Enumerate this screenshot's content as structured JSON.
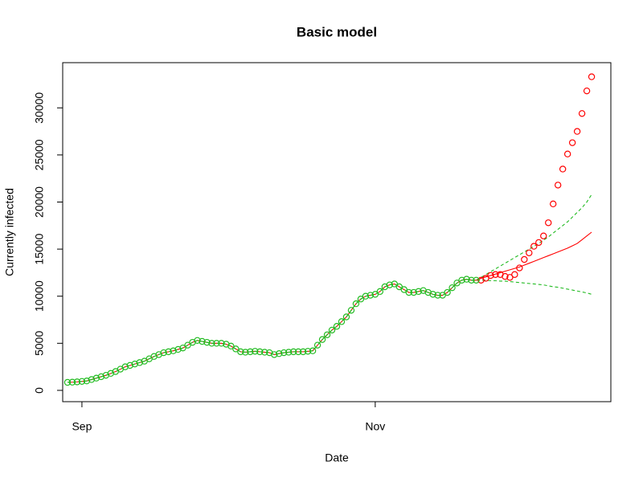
{
  "chart_data": {
    "type": "line",
    "title": "Basic model",
    "x_label": "Date",
    "y_label": "Currently infected",
    "x": [
      0,
      1,
      2,
      3,
      4,
      5,
      6,
      7,
      8,
      9,
      10,
      11,
      12,
      13,
      14,
      15,
      16,
      17,
      18,
      19,
      20,
      21,
      22,
      23,
      24,
      25,
      26,
      27,
      28,
      29,
      30,
      31,
      32,
      33,
      34,
      35,
      36,
      37,
      38,
      39,
      40,
      41,
      42,
      43,
      44,
      45,
      46,
      47,
      48,
      49,
      50,
      51,
      52,
      53,
      54,
      55,
      56,
      57,
      58,
      59,
      60,
      61,
      62,
      63,
      64,
      65,
      66,
      67,
      68,
      69,
      70,
      71,
      72,
      73,
      74,
      75,
      76,
      77,
      78,
      79,
      80,
      81,
      82,
      83,
      84,
      85,
      86,
      87,
      88,
      89,
      90,
      91,
      92,
      93,
      94,
      95,
      96,
      97,
      98,
      99,
      100,
      101,
      102,
      103,
      104,
      105,
      106,
      107,
      108,
      109
    ],
    "xlim": [
      -1,
      113
    ],
    "xticks": [
      {
        "value": 3,
        "label": "Sep"
      },
      {
        "value": 64,
        "label": "Nov"
      }
    ],
    "ylim": [
      -1200,
      34800
    ],
    "yticks": [
      0,
      5000,
      10000,
      15000,
      20000,
      25000,
      30000
    ],
    "series": [
      {
        "color": "#ff0000",
        "style": "solid",
        "values": [
          850,
          870,
          900,
          950,
          1000,
          1150,
          1300,
          1450,
          1600,
          1800,
          2000,
          2250,
          2500,
          2650,
          2800,
          2950,
          3100,
          3350,
          3600,
          3800,
          4000,
          4100,
          4200,
          4350,
          4500,
          4800,
          5100,
          5300,
          5200,
          5100,
          5000,
          5000,
          5000,
          4900,
          4700,
          4400,
          4100,
          4050,
          4100,
          4150,
          4100,
          4050,
          4000,
          3800,
          3900,
          4000,
          4050,
          4100,
          4100,
          4100,
          4150,
          4200,
          4800,
          5400,
          5900,
          6400,
          6800,
          7300,
          7800,
          8500,
          9200,
          9700,
          10000,
          10100,
          10200,
          10500,
          11000,
          11200,
          11300,
          11000,
          10700,
          10400,
          10400,
          10500,
          10600,
          10400,
          10200,
          10100,
          10100,
          10400,
          10900,
          11400,
          11700,
          11800,
          11700,
          11700,
          11900,
          12050,
          12200,
          12350,
          12500,
          12650,
          12800,
          12950,
          13100,
          13300,
          13500,
          13700,
          13900,
          14100,
          14300,
          14500,
          14700,
          14900,
          15100,
          15350,
          15600,
          16000,
          16400,
          16800
        ]
      },
      {
        "color": "#22bb22",
        "style": "dashed",
        "values": [
          850,
          870,
          900,
          950,
          1000,
          1150,
          1300,
          1450,
          1600,
          1800,
          2000,
          2250,
          2500,
          2650,
          2800,
          2950,
          3100,
          3350,
          3600,
          3800,
          4000,
          4100,
          4200,
          4350,
          4500,
          4800,
          5100,
          5300,
          5200,
          5100,
          5000,
          5000,
          5000,
          4900,
          4700,
          4400,
          4100,
          4050,
          4100,
          4150,
          4100,
          4050,
          4000,
          3800,
          3900,
          4000,
          4050,
          4100,
          4100,
          4100,
          4150,
          4200,
          4800,
          5400,
          5900,
          6400,
          6800,
          7300,
          7800,
          8500,
          9200,
          9700,
          10000,
          10100,
          10200,
          10500,
          11000,
          11200,
          11300,
          11000,
          10700,
          10400,
          10400,
          10500,
          10600,
          10400,
          10200,
          10100,
          10100,
          10400,
          10900,
          11400,
          11700,
          11800,
          11700,
          11700,
          12000,
          12300,
          12600,
          12900,
          13200,
          13500,
          13800,
          14100,
          14400,
          14700,
          15000,
          15300,
          15600,
          15950,
          16300,
          16700,
          17100,
          17500,
          17900,
          18400,
          18900,
          19400,
          20000,
          20800
        ]
      },
      {
        "color": "#22bb22",
        "style": "dashed",
        "values": [
          850,
          870,
          900,
          950,
          1000,
          1150,
          1300,
          1450,
          1600,
          1800,
          2000,
          2250,
          2500,
          2650,
          2800,
          2950,
          3100,
          3350,
          3600,
          3800,
          4000,
          4100,
          4200,
          4350,
          4500,
          4800,
          5100,
          5300,
          5200,
          5100,
          5000,
          5000,
          5000,
          4900,
          4700,
          4400,
          4100,
          4050,
          4100,
          4150,
          4100,
          4050,
          4000,
          3800,
          3900,
          4000,
          4050,
          4100,
          4100,
          4100,
          4150,
          4200,
          4800,
          5400,
          5900,
          6400,
          6800,
          7300,
          7800,
          8500,
          9200,
          9700,
          10000,
          10100,
          10200,
          10500,
          11000,
          11200,
          11300,
          11000,
          10700,
          10400,
          10400,
          10500,
          10600,
          10400,
          10200,
          10100,
          10100,
          10400,
          10900,
          11400,
          11700,
          11800,
          11700,
          11700,
          11700,
          11700,
          11650,
          11650,
          11600,
          11600,
          11550,
          11500,
          11450,
          11400,
          11350,
          11300,
          11250,
          11200,
          11100,
          11000,
          10950,
          10850,
          10750,
          10650,
          10550,
          10450,
          10350,
          10200
        ]
      },
      {
        "color": "#ff0000",
        "style": "circles",
        "values": [
          null,
          null,
          null,
          null,
          null,
          null,
          null,
          null,
          null,
          null,
          null,
          null,
          null,
          null,
          null,
          null,
          null,
          null,
          null,
          null,
          null,
          null,
          null,
          null,
          null,
          null,
          null,
          null,
          null,
          null,
          null,
          null,
          null,
          null,
          null,
          null,
          null,
          null,
          null,
          null,
          null,
          null,
          null,
          null,
          null,
          null,
          null,
          null,
          null,
          null,
          null,
          null,
          null,
          null,
          null,
          null,
          null,
          null,
          null,
          null,
          null,
          null,
          null,
          null,
          null,
          null,
          null,
          null,
          null,
          null,
          null,
          null,
          null,
          null,
          null,
          null,
          null,
          null,
          null,
          null,
          null,
          null,
          null,
          null,
          null,
          null,
          11700,
          11900,
          12200,
          12300,
          12300,
          12100,
          12000,
          12300,
          13000,
          13900,
          14600,
          15300,
          15700,
          16400,
          17800,
          19800,
          21800,
          23500,
          25100,
          26300,
          27500,
          29400,
          31800,
          33300
        ]
      },
      {
        "color": "#22bb22",
        "style": "circles",
        "values": [
          850,
          870,
          900,
          950,
          1000,
          1150,
          1300,
          1450,
          1600,
          1800,
          2000,
          2250,
          2500,
          2650,
          2800,
          2950,
          3100,
          3350,
          3600,
          3800,
          4000,
          4100,
          4200,
          4350,
          4500,
          4800,
          5100,
          5300,
          5200,
          5100,
          5000,
          5000,
          5000,
          4900,
          4700,
          4400,
          4100,
          4050,
          4100,
          4150,
          4100,
          4050,
          4000,
          3800,
          3900,
          4000,
          4050,
          4100,
          4100,
          4100,
          4150,
          4200,
          4800,
          5400,
          5900,
          6400,
          6800,
          7300,
          7800,
          8500,
          9200,
          9700,
          10000,
          10100,
          10200,
          10500,
          11000,
          11200,
          11300,
          11000,
          10700,
          10400,
          10400,
          10500,
          10600,
          10400,
          10200,
          10100,
          10100,
          10400,
          10900,
          11400,
          11700,
          11800,
          11700,
          11700,
          null,
          null,
          null,
          null,
          null,
          null,
          null,
          null,
          null,
          null,
          null,
          null,
          null,
          null,
          null,
          null,
          null,
          null,
          null,
          null,
          null,
          null,
          null,
          null
        ]
      }
    ]
  }
}
